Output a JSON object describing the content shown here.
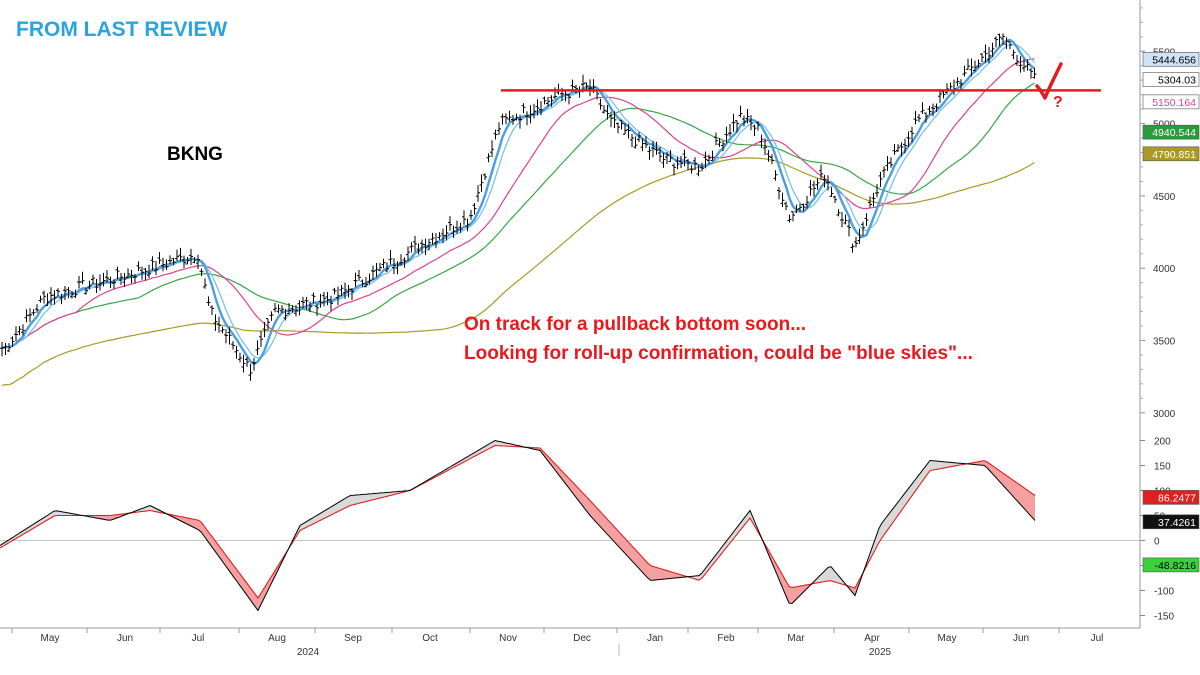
{
  "header": {
    "title": "FROM LAST REVIEW",
    "ticker": "BKNG"
  },
  "annotations": {
    "line1": "On track for a pullback bottom soon...",
    "line2": "Looking for roll-up confirmation, could be \"blue skies\"...",
    "question_mark": "?"
  },
  "colors": {
    "price_bars": "#000000",
    "ma_fast_thick": "#4a9fdd",
    "ma_fast_thin": "#7cc0ec",
    "ma_50": "#e0418f",
    "ma_100": "#35a845",
    "ma_200": "#a89a22",
    "resistance": "#e8191f",
    "osc_fast": "#000000",
    "osc_slow": "#e02020",
    "fill_up": "#d9d9d9",
    "fill_down": "#f5a0a0",
    "annotation": "#e8191f",
    "title": "#2aa4e0"
  },
  "chart_data": [
    {
      "type": "line",
      "panel": "price",
      "ticker": "BKNG",
      "y_ticks": [
        3000,
        3500,
        4000,
        4500,
        5000,
        5500
      ],
      "ylim": [
        2950,
        5820
      ],
      "x_labels": [
        "May",
        "Jun",
        "Jul",
        "Aug",
        "Sep",
        "Oct",
        "Nov",
        "Dec",
        "Jan",
        "Feb",
        "Mar",
        "Apr",
        "May",
        "Jun",
        "Jul"
      ],
      "year_labels": [
        "2024",
        "2025"
      ],
      "price": {
        "x": [
          "Apr 2024",
          "May 2024",
          "Jun 2024",
          "Jul 2024",
          "Jul 2024",
          "Aug 2024",
          "Aug 2024",
          "Sep 2024",
          "Oct 2024",
          "Oct 2024",
          "Nov 2024",
          "Nov 2024",
          "Dec 2024",
          "Dec 2024",
          "Jan 2025",
          "Jan 2025",
          "Feb 2025",
          "Feb 2025",
          "Mar 2025",
          "Mar 2025",
          "Mar 2025",
          "Apr 2025",
          "Apr 2025",
          "May 2025",
          "Jun 2025",
          "Jun 2025"
        ],
        "values": [
          3450,
          3800,
          3950,
          4100,
          3700,
          3300,
          3700,
          3800,
          4200,
          4350,
          5000,
          5200,
          5250,
          5000,
          4750,
          4700,
          5050,
          4950,
          4350,
          4650,
          4150,
          4600,
          5000,
          5300,
          5600,
          5300
        ]
      },
      "last_values": [
        {
          "label": "5444.656",
          "value": 5444.656,
          "color": "#4a9fdd"
        },
        {
          "label": "5304.03",
          "value": 5304.03,
          "color": "#000000"
        },
        {
          "label": "5150.164",
          "value": 5150.164,
          "color": "#e0418f"
        },
        {
          "label": "4940.544",
          "value": 4940.544,
          "color": "#35a845"
        },
        {
          "label": "4790.851",
          "value": 4790.851,
          "color": "#a89a22"
        }
      ],
      "resistance_level": 5230
    },
    {
      "type": "line",
      "panel": "oscillator",
      "y_ticks": [
        -150,
        -100,
        -50,
        0,
        50,
        100,
        150,
        200
      ],
      "ylim": [
        -175,
        225
      ],
      "series": [
        {
          "values": [
            -10,
            60,
            40,
            70,
            20,
            -140,
            30,
            90,
            100,
            200,
            180,
            50,
            -80,
            -70,
            60,
            -130,
            -50,
            -110,
            30,
            160,
            150,
            40
          ]
        },
        {
          "values": [
            -15,
            50,
            50,
            60,
            40,
            -115,
            20,
            70,
            100,
            190,
            185,
            80,
            -50,
            -80,
            45,
            -95,
            -80,
            -95,
            0,
            140,
            160,
            90
          ]
        }
      ],
      "last_values": [
        {
          "label": "86.2477",
          "value": 86.2477,
          "color": "#e02020"
        },
        {
          "label": "37.4261",
          "value": 37.4261,
          "color": "#000000"
        },
        {
          "label": "-48.8216",
          "value": -48.8216,
          "color": "#1fbf1f"
        }
      ]
    }
  ]
}
